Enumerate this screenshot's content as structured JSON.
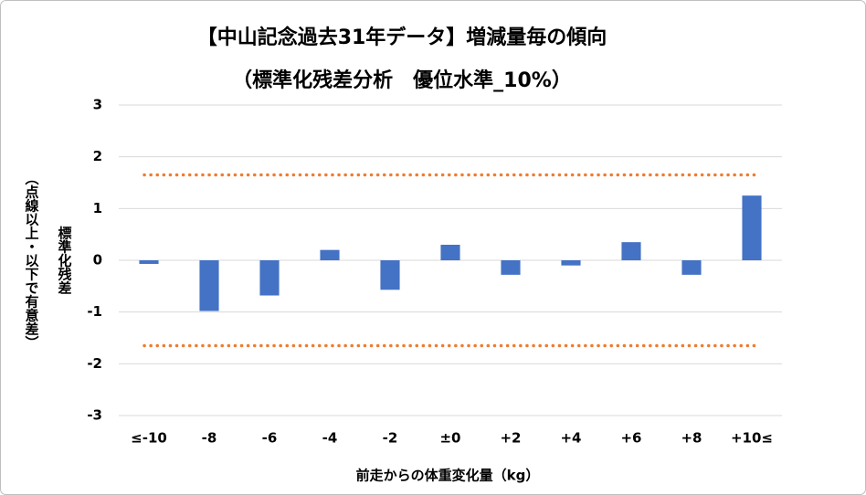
{
  "chart_data": {
    "type": "bar",
    "title": "【中山記念過去31年データ】増減量毎の傾向",
    "subtitle": "（標準化残差分析　優位水準_10%）",
    "y_label": "標準化残差",
    "y_label_note": "（点線以上・以下で有意差）",
    "x_label": "前走からの体重変化量（kg）",
    "categories": [
      "≤-10",
      "-8",
      "-6",
      "-4",
      "-2",
      "±0",
      "+2",
      "+4",
      "+6",
      "+8",
      "+10≤"
    ],
    "values": [
      -0.07,
      -0.98,
      -0.68,
      0.2,
      -0.57,
      0.3,
      -0.28,
      -0.1,
      0.35,
      -0.28,
      1.25
    ],
    "color": "#4472c4",
    "reference_lines": [
      1.65,
      -1.65
    ],
    "reference_color": "#ed7d31",
    "ylim": [
      -3,
      3
    ],
    "yticks": [
      -3,
      -2,
      -1,
      0,
      1,
      2,
      3
    ],
    "grid": true
  }
}
